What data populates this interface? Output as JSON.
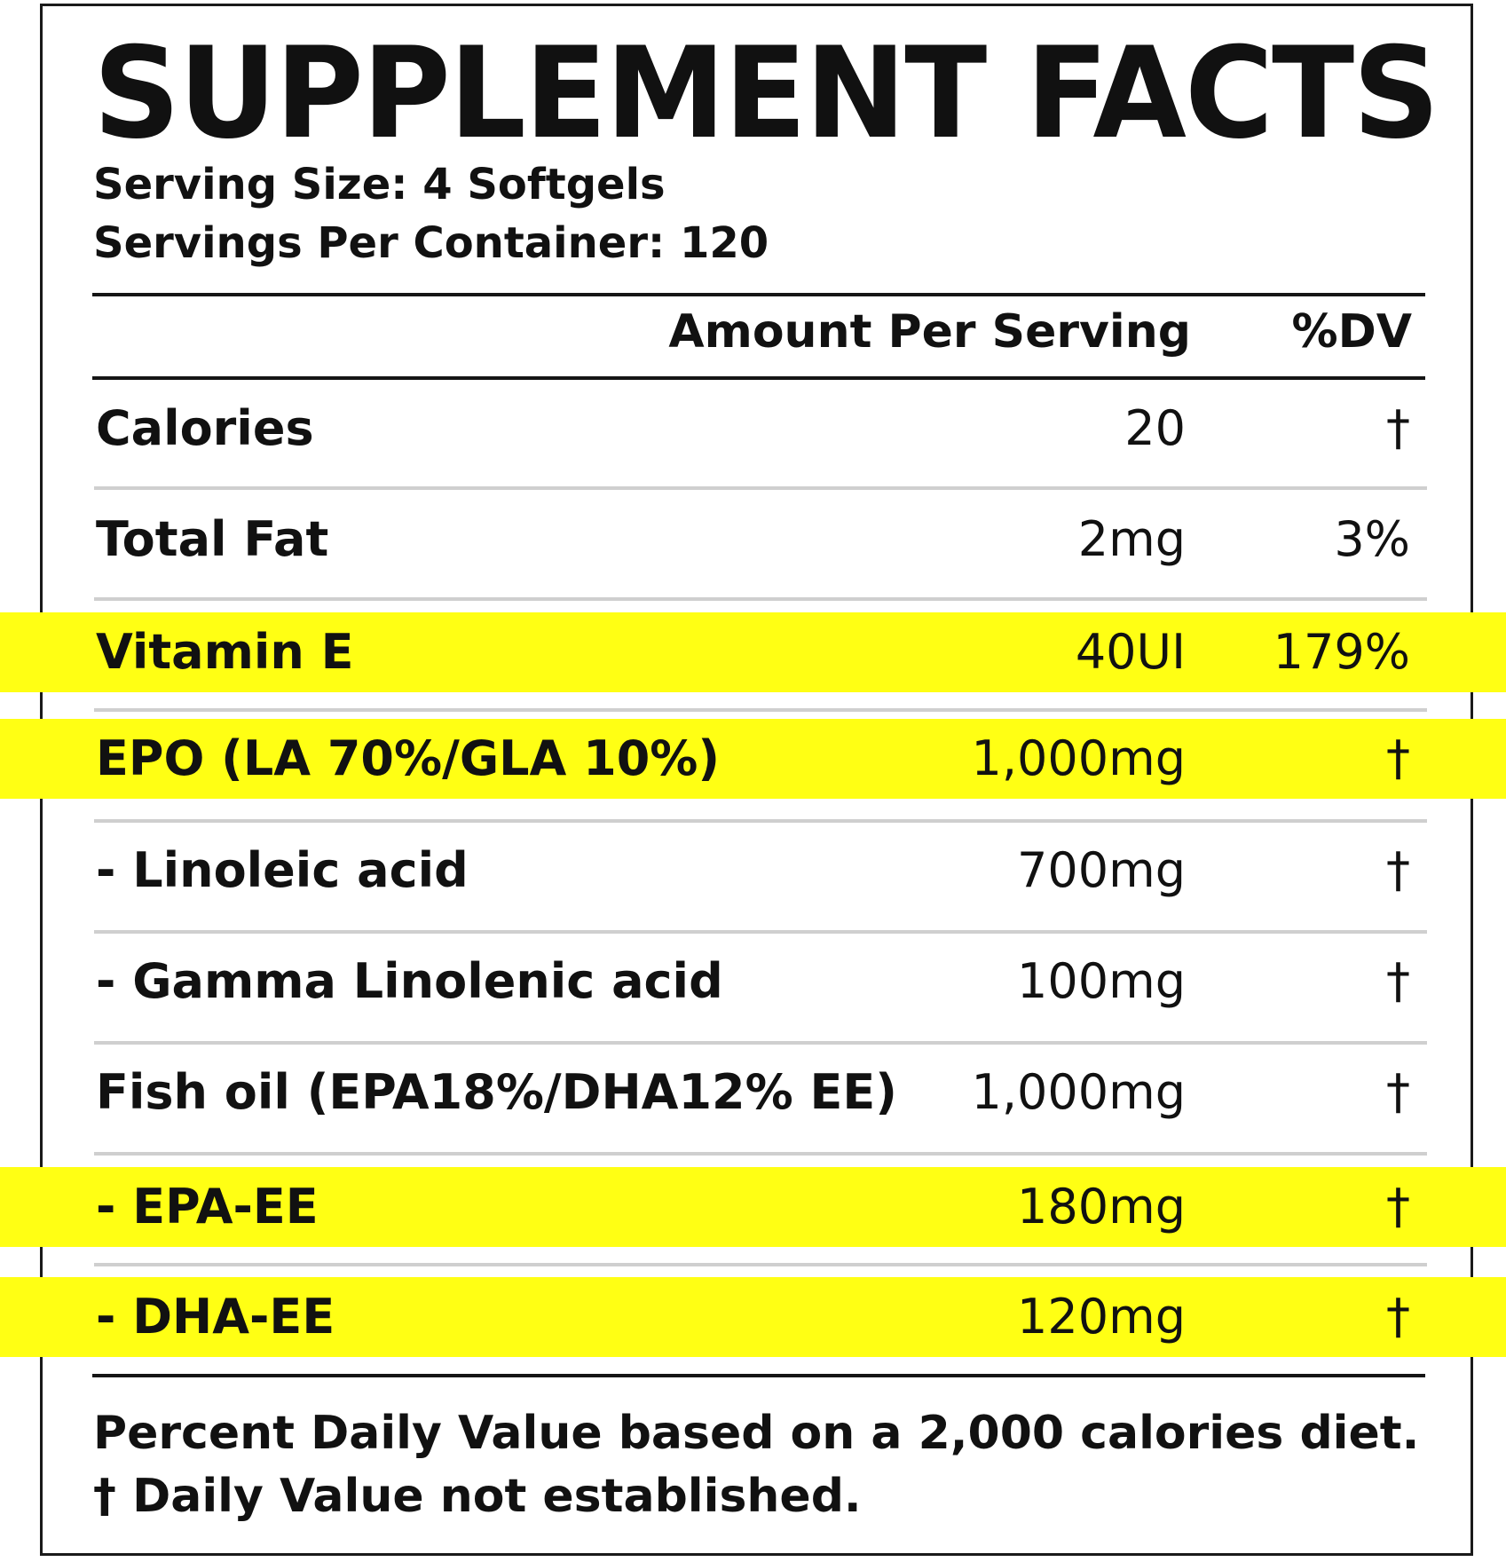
{
  "label": {
    "title": "SUPPLEMENT FACTS",
    "serving_size": "Serving Size: 4 Softgels",
    "servings_per_container": "Servings Per Container: 120",
    "col_amount": "Amount Per Serving",
    "col_dv": "%DV",
    "highlight_color": "#ffff14",
    "rows": [
      {
        "name": "Calories",
        "amount": "20",
        "dv": "†",
        "highlight": false
      },
      {
        "name": "Total Fat",
        "amount": "2mg",
        "dv": "3%",
        "highlight": false
      },
      {
        "name": "Vitamin E",
        "amount": "40UI",
        "dv": "179%",
        "highlight": true
      },
      {
        "name": "EPO (LA 70%/GLA 10%)",
        "amount": "1,000mg",
        "dv": "†",
        "highlight": true
      },
      {
        "name": "- Linoleic acid",
        "amount": "700mg",
        "dv": "†",
        "highlight": false
      },
      {
        "name": "- Gamma Linolenic acid",
        "amount": "100mg",
        "dv": "†",
        "highlight": false
      },
      {
        "name": "Fish oil (EPA18%/DHA12% EE)",
        "amount": "1,000mg",
        "dv": "†",
        "highlight": false
      },
      {
        "name": "- EPA-EE",
        "amount": "180mg",
        "dv": "†",
        "highlight": true
      },
      {
        "name": "- DHA-EE",
        "amount": "120mg",
        "dv": "†",
        "highlight": true
      }
    ],
    "footnote_1": "Percent Daily Value based on a 2,000 calories diet.",
    "footnote_2": "† Daily Value not established."
  }
}
